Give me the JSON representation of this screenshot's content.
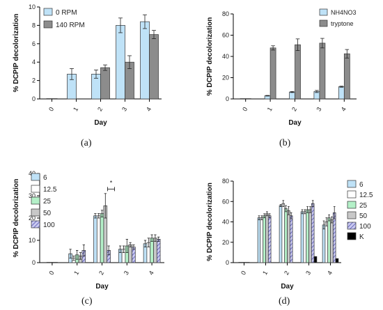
{
  "chart_data": [
    {
      "id": "a",
      "type": "bar",
      "panel_label": "(a)",
      "xlabel": "Day",
      "ylabel": "% DCPIP decolorization",
      "ylim": [
        0,
        10
      ],
      "yticks": [
        0,
        2,
        4,
        6,
        8,
        10
      ],
      "categories": [
        "0",
        "1",
        "2",
        "3",
        "4"
      ],
      "legend_position": "top-left",
      "series": [
        {
          "name": "0 RPM",
          "color": "#bfe2f7",
          "pattern": "solid",
          "values": [
            0,
            2.7,
            2.7,
            8.0,
            8.4
          ],
          "errors": [
            0,
            0.6,
            0.45,
            0.8,
            0.75
          ]
        },
        {
          "name": "140 RPM",
          "color": "#8c8c8c",
          "pattern": "solid",
          "values": [
            null,
            null,
            3.4,
            4.0,
            7.0
          ],
          "errors": [
            0,
            0,
            0.3,
            0.7,
            0.45
          ]
        }
      ]
    },
    {
      "id": "b",
      "type": "bar",
      "panel_label": "(b)",
      "xlabel": "Day",
      "ylabel": "% DCPIP decolorization",
      "ylim": [
        0,
        80
      ],
      "yticks": [
        0,
        20,
        40,
        60,
        80
      ],
      "categories": [
        "0",
        "1",
        "2",
        "3",
        "4"
      ],
      "legend_position": "top-right",
      "series": [
        {
          "name": "NH4NO3",
          "color": "#bfe2f7",
          "pattern": "solid",
          "values": [
            0,
            3,
            6.5,
            7.0,
            11.5
          ],
          "errors": [
            0,
            0.3,
            0.5,
            1.0,
            0.5
          ]
        },
        {
          "name": "tryptone",
          "color": "#8c8c8c",
          "pattern": "solid",
          "values": [
            null,
            48,
            51,
            52.5,
            42.5
          ],
          "errors": [
            0,
            2,
            5.5,
            4.5,
            4.0
          ]
        }
      ]
    },
    {
      "id": "c",
      "type": "bar",
      "panel_label": "(c)",
      "xlabel": "Day",
      "ylabel": "% DCPIP decolorization",
      "ylim": [
        0,
        40
      ],
      "yticks": [
        0,
        10,
        20,
        30,
        40
      ],
      "categories": [
        "0",
        "1",
        "2",
        "3",
        "4"
      ],
      "legend_position": "left",
      "annotation": "*",
      "series": [
        {
          "name": "6",
          "color": "#bfe2f7",
          "pattern": "solid",
          "values": [
            0,
            4,
            21,
            6,
            8.5
          ],
          "errors": [
            0,
            2,
            1,
            1.5,
            1.5
          ]
        },
        {
          "name": "12.5",
          "color": "#ffffff",
          "pattern": "solid",
          "values": [
            null,
            2,
            21,
            6,
            9
          ],
          "errors": [
            0,
            1,
            1,
            1.5,
            2
          ]
        },
        {
          "name": "25",
          "color": "#b4f0c8",
          "pattern": "solid",
          "values": [
            null,
            3.5,
            22,
            7.5,
            11
          ],
          "errors": [
            0,
            2,
            1.5,
            3,
            1.5
          ]
        },
        {
          "name": "50",
          "color": "#c8c8c8",
          "pattern": "solid",
          "values": [
            null,
            3,
            25.5,
            8,
            11
          ],
          "errors": [
            0,
            1.5,
            5.5,
            1,
            1.5
          ]
        },
        {
          "name": "100",
          "color": "#a8a8e0",
          "pattern": "hatch",
          "values": [
            null,
            5.5,
            5.5,
            7,
            10.5
          ],
          "errors": [
            0,
            2.5,
            2,
            1,
            1
          ]
        }
      ]
    },
    {
      "id": "d",
      "type": "bar",
      "panel_label": "(d)",
      "xlabel": "Day",
      "ylabel": "% DCPIP decolorization",
      "ylim": [
        0,
        80
      ],
      "yticks": [
        0,
        20,
        40,
        60,
        80
      ],
      "categories": [
        "0",
        "1",
        "2",
        "3",
        "4"
      ],
      "legend_position": "right",
      "series": [
        {
          "name": "6",
          "color": "#bfe2f7",
          "pattern": "solid",
          "values": [
            0,
            44,
            56,
            50,
            37
          ],
          "errors": [
            0,
            2,
            1,
            2,
            4
          ]
        },
        {
          "name": "12.5",
          "color": "#ffffff",
          "pattern": "solid",
          "values": [
            null,
            44,
            58,
            50,
            40
          ],
          "errors": [
            0,
            2,
            3,
            2,
            4
          ]
        },
        {
          "name": "25",
          "color": "#b4f0c8",
          "pattern": "solid",
          "values": [
            null,
            46,
            53,
            52,
            44
          ],
          "errors": [
            0,
            2,
            3,
            3,
            3
          ]
        },
        {
          "name": "50",
          "color": "#c8c8c8",
          "pattern": "solid",
          "values": [
            null,
            48,
            51,
            52,
            42
          ],
          "errors": [
            0,
            2,
            4,
            3,
            3
          ]
        },
        {
          "name": "100",
          "color": "#a8a8e0",
          "pattern": "hatch",
          "values": [
            null,
            46,
            46,
            58,
            49
          ],
          "errors": [
            0,
            2,
            3,
            3,
            6
          ]
        },
        {
          "name": "K",
          "color": "#000000",
          "pattern": "solid",
          "values": [
            null,
            null,
            null,
            6,
            4
          ],
          "errors": [
            0,
            0,
            0,
            0,
            0
          ]
        }
      ]
    }
  ]
}
